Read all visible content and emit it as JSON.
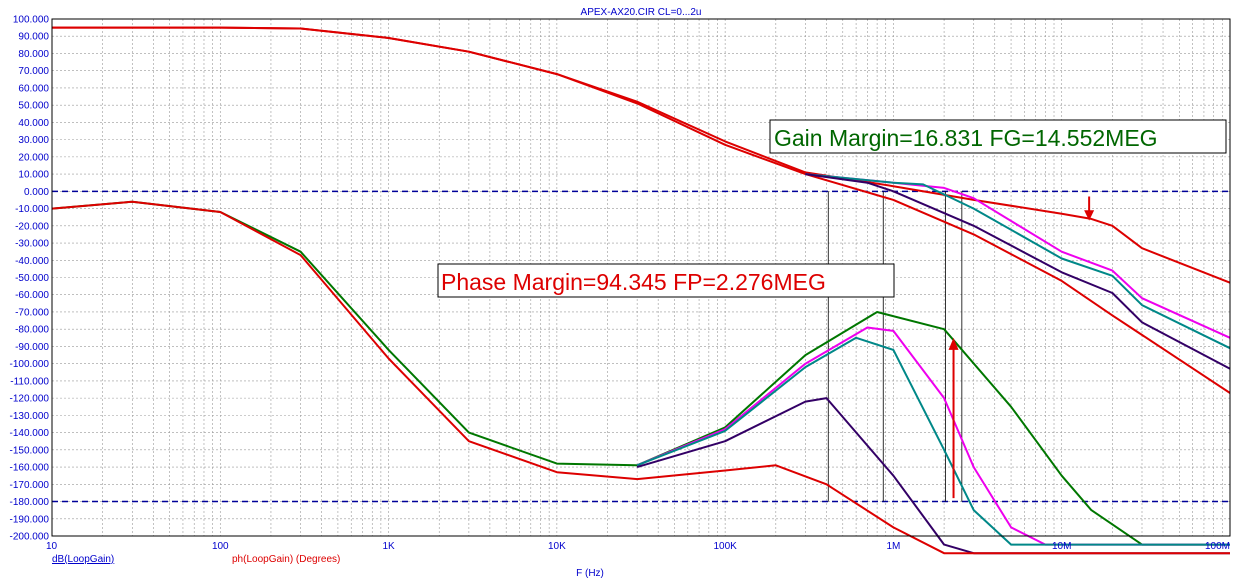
{
  "chart_data": {
    "type": "line",
    "title": "APEX-AX20.CIR CL=0...2u",
    "xlabel": "F (Hz)",
    "x_scale": "log",
    "xlim": [
      10,
      100000000
    ],
    "ylim": [
      -200,
      100
    ],
    "grid": true,
    "x_ticks": [
      "10",
      "100",
      "1K",
      "10K",
      "100K",
      "1M",
      "10M",
      "100M"
    ],
    "y_ticks": [
      "100.000",
      "90.000",
      "80.000",
      "70.000",
      "60.000",
      "50.000",
      "40.000",
      "30.000",
      "20.000",
      "10.000",
      "0.000",
      "-10.000",
      "-20.000",
      "-30.000",
      "-40.000",
      "-50.000",
      "-60.000",
      "-70.000",
      "-80.000",
      "-90.000",
      "-100.000",
      "-110.000",
      "-120.000",
      "-130.000",
      "-140.000",
      "-150.000",
      "-160.000",
      "-170.000",
      "-180.000",
      "-190.000",
      "-200.000"
    ],
    "trace_labels": [
      {
        "text": "dB(LoopGain)",
        "color": "#0000cc"
      },
      {
        "text": "ph(LoopGain) (Degrees)",
        "color": "#dd0000"
      }
    ],
    "reference_lines": [
      0,
      -180
    ],
    "annotations": {
      "gain_margin": {
        "text": "Gain Margin=16.831 FG=14.552MEG",
        "color": "#006600"
      },
      "phase_margin": {
        "text": "Phase Margin=94.345 FP=2.276MEG",
        "color": "#dd0000"
      }
    },
    "colors": {
      "red": "#dd0000",
      "green": "#007700",
      "magenta": "#ee00ee",
      "teal": "#008888",
      "indigo": "#330066",
      "axis": "#0000cc",
      "grid": "#999999"
    },
    "gain_series": [
      {
        "color": "#dd0000",
        "x": [
          10,
          100,
          300,
          1000,
          3000,
          10000,
          30000,
          100000,
          300000,
          1000000,
          3000000,
          10000000,
          15000000,
          20000000,
          30000000,
          100000000
        ],
        "y": [
          95,
          95,
          94.5,
          89,
          81,
          68,
          52,
          29,
          11,
          3,
          -5,
          -13,
          -16,
          -20,
          -33,
          -53
        ]
      },
      {
        "color": "#dd0000",
        "x": [
          10,
          100,
          300,
          1000,
          3000,
          10000,
          30000,
          100000,
          300000,
          1000000,
          3000000,
          10000000,
          20000000,
          100000000
        ],
        "y": [
          95,
          95,
          94.5,
          89,
          81,
          68,
          51,
          27,
          10,
          -5,
          -25,
          -52,
          -72,
          -117
        ]
      },
      {
        "color": "#ee00ee",
        "x": [
          300000,
          1000000,
          2000000,
          3000000,
          10000000,
          20000000,
          30000000,
          100000000
        ],
        "y": [
          10,
          5,
          2,
          -4,
          -35,
          -46,
          -62,
          -85
        ]
      },
      {
        "color": "#008888",
        "x": [
          300000,
          1000000,
          1500000,
          3000000,
          10000000,
          20000000,
          30000000,
          100000000
        ],
        "y": [
          10,
          5,
          4,
          -10,
          -39,
          -49,
          -66,
          -91
        ]
      },
      {
        "color": "#330066",
        "x": [
          300000,
          700000,
          1000000,
          3000000,
          10000000,
          20000000,
          30000000,
          100000000
        ],
        "y": [
          10,
          5,
          0,
          -20,
          -47,
          -59,
          -76,
          -103
        ]
      }
    ],
    "phase_series": [
      {
        "color": "#007700",
        "x": [
          10,
          30,
          100,
          300,
          1000,
          3000,
          10000,
          30000,
          100000,
          300000,
          800000,
          2000000,
          5000000,
          10000000,
          15000000,
          30000000,
          100000000
        ],
        "y": [
          -10,
          -6,
          -12,
          -35,
          -92,
          -140,
          -158,
          -159,
          -137,
          -95,
          -70,
          -80,
          -125,
          -165,
          -185,
          -205,
          -205
        ]
      },
      {
        "color": "#ee00ee",
        "x": [
          30000,
          100000,
          300000,
          700000,
          1000000,
          2000000,
          3000000,
          5000000,
          8000000,
          100000000
        ],
        "y": [
          -159,
          -138,
          -100,
          -79,
          -81,
          -120,
          -160,
          -195,
          -205,
          -205
        ]
      },
      {
        "color": "#008888",
        "x": [
          30000,
          100000,
          300000,
          600000,
          1000000,
          2000000,
          3000000,
          5000000,
          100000000
        ],
        "y": [
          -159,
          -139,
          -102,
          -85,
          -92,
          -150,
          -185,
          -205,
          -205
        ]
      },
      {
        "color": "#330066",
        "x": [
          30000,
          100000,
          300000,
          400000,
          1000000,
          2000000,
          3000000,
          100000000
        ],
        "y": [
          -160,
          -145,
          -122,
          -120,
          -165,
          -205,
          -210,
          -210
        ]
      },
      {
        "color": "#dd0000",
        "x": [
          10,
          30,
          100,
          300,
          1000,
          3000,
          10000,
          30000,
          100000,
          200000,
          400000,
          1000000,
          2000000,
          3000000,
          100000000
        ],
        "y": [
          -10,
          -6,
          -12,
          -37,
          -97,
          -145,
          -163,
          -167,
          -162,
          -159,
          -170,
          -195,
          -210,
          -210,
          -210
        ]
      }
    ],
    "markers": {
      "gain_verticals": [
        410000,
        870000,
        2040000,
        2550000
      ],
      "phase_verticals": [
        870000,
        2040000
      ]
    }
  }
}
